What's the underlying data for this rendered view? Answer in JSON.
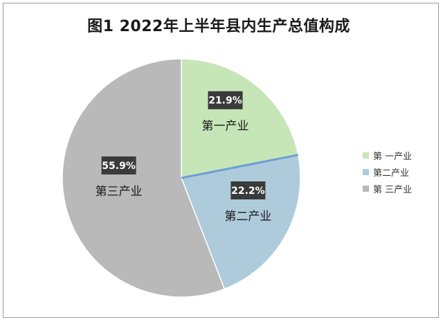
{
  "colors": {
    "primary": "#c6e6b8",
    "secondary": "#aecbdc",
    "tertiary": "#b9b9b9",
    "divider_blue": "#6b9fd6",
    "label_bg": "#3a3a3a",
    "label_text": "#ffffff",
    "category_text": "#1a1a1a"
  },
  "chart_data": {
    "type": "pie",
    "title": "图1  2022年上半年县内生产总值构成",
    "slices": [
      {
        "name": "第一产业",
        "legend_label": "第 一产业",
        "value": 21.9,
        "label": "21.9%"
      },
      {
        "name": "第二产业",
        "legend_label": "第二产业",
        "value": 22.2,
        "label": "22.2%"
      },
      {
        "name": "第三产业",
        "legend_label": "第 三产业",
        "value": 55.9,
        "label": "55.9%"
      }
    ],
    "legend_position": "right"
  }
}
